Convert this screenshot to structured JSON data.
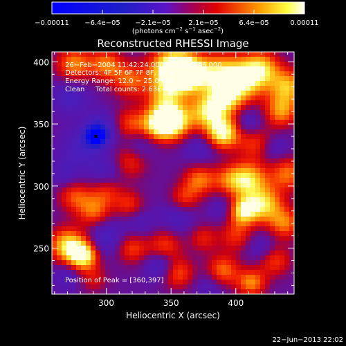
{
  "chart_data": {
    "type": "heatmap",
    "title": "Reconstructed RHESSI Image",
    "xlabel": "Heliocentric X (arcsec)",
    "ylabel": "Heliocentric Y (arcsec)",
    "xlim": [
      258,
      445
    ],
    "ylim": [
      213,
      408
    ],
    "x_ticks": [
      300,
      350,
      400
    ],
    "y_ticks": [
      250,
      300,
      350,
      400
    ],
    "colorbar": {
      "ticks": [
        "−0.00011",
        "−6.4e−05",
        "−2.1e−05",
        "2.1e−05",
        "6.4e−05",
        "0.00011"
      ],
      "range": [
        -0.00011,
        0.00011
      ],
      "unit_prefix": "(photons cm",
      "unit_sup1": "−2",
      "unit_mid1": " s",
      "unit_sup2": "−1",
      "unit_mid2": " asec",
      "unit_sup3": "−2",
      "unit_suffix": ")"
    },
    "annotations": {
      "time": "26−Feb−2004 11:42:24.000 to 11:46:46.000",
      "detectors": "Detectors: 4F 5F 6F 7F 8F, All 9",
      "energy": "Energy Range: 12.0 − 25.0 keV",
      "clean": "Clean     Total counts: 2.63E+03",
      "peak": "Position of Peak = [360,397]"
    },
    "peak": [
      360,
      397
    ],
    "footer_date": "22−Jun−2013 22:02",
    "blobs": [
      {
        "x": 350,
        "y": 395,
        "v": 0.95,
        "s": 12
      },
      {
        "x": 362,
        "y": 390,
        "v": 1.0,
        "s": 10
      },
      {
        "x": 275,
        "y": 398,
        "v": 0.6,
        "s": 10
      },
      {
        "x": 300,
        "y": 398,
        "v": 0.55,
        "s": 9
      },
      {
        "x": 318,
        "y": 385,
        "v": 0.5,
        "s": 10
      },
      {
        "x": 345,
        "y": 372,
        "v": 0.55,
        "s": 10
      },
      {
        "x": 385,
        "y": 390,
        "v": 0.7,
        "s": 12
      },
      {
        "x": 405,
        "y": 385,
        "v": 0.85,
        "s": 12
      },
      {
        "x": 420,
        "y": 395,
        "v": 0.65,
        "s": 10
      },
      {
        "x": 440,
        "y": 380,
        "v": 0.7,
        "s": 10
      },
      {
        "x": 435,
        "y": 360,
        "v": 0.6,
        "s": 9
      },
      {
        "x": 352,
        "y": 352,
        "v": 0.95,
        "s": 10
      },
      {
        "x": 340,
        "y": 350,
        "v": 0.8,
        "s": 9
      },
      {
        "x": 378,
        "y": 360,
        "v": 0.75,
        "s": 10
      },
      {
        "x": 390,
        "y": 343,
        "v": 0.95,
        "s": 9
      },
      {
        "x": 392,
        "y": 370,
        "v": 0.6,
        "s": 9
      },
      {
        "x": 415,
        "y": 335,
        "v": 0.45,
        "s": 10
      },
      {
        "x": 318,
        "y": 350,
        "v": 0.45,
        "s": 9
      },
      {
        "x": 318,
        "y": 320,
        "v": 0.45,
        "s": 10
      },
      {
        "x": 300,
        "y": 296,
        "v": 0.4,
        "s": 9
      },
      {
        "x": 275,
        "y": 292,
        "v": 0.45,
        "s": 9
      },
      {
        "x": 290,
        "y": 280,
        "v": 0.5,
        "s": 9
      },
      {
        "x": 318,
        "y": 285,
        "v": 0.4,
        "s": 8
      },
      {
        "x": 372,
        "y": 305,
        "v": 0.55,
        "s": 9
      },
      {
        "x": 360,
        "y": 290,
        "v": 0.4,
        "s": 8
      },
      {
        "x": 395,
        "y": 305,
        "v": 0.45,
        "s": 9
      },
      {
        "x": 410,
        "y": 305,
        "v": 0.75,
        "s": 10
      },
      {
        "x": 440,
        "y": 310,
        "v": 0.55,
        "s": 10
      },
      {
        "x": 422,
        "y": 285,
        "v": 0.75,
        "s": 10
      },
      {
        "x": 405,
        "y": 280,
        "v": 0.85,
        "s": 8
      },
      {
        "x": 438,
        "y": 270,
        "v": 0.55,
        "s": 9
      },
      {
        "x": 400,
        "y": 260,
        "v": 0.4,
        "s": 9
      },
      {
        "x": 375,
        "y": 258,
        "v": 0.35,
        "s": 8
      },
      {
        "x": 270,
        "y": 252,
        "v": 0.8,
        "s": 10
      },
      {
        "x": 282,
        "y": 244,
        "v": 0.9,
        "s": 8
      },
      {
        "x": 320,
        "y": 250,
        "v": 0.45,
        "s": 9
      },
      {
        "x": 345,
        "y": 252,
        "v": 0.45,
        "s": 9
      },
      {
        "x": 355,
        "y": 230,
        "v": 0.5,
        "s": 9
      },
      {
        "x": 390,
        "y": 232,
        "v": 0.55,
        "s": 9
      },
      {
        "x": 412,
        "y": 222,
        "v": 0.6,
        "s": 8
      },
      {
        "x": 430,
        "y": 240,
        "v": 0.45,
        "s": 9
      },
      {
        "x": 290,
        "y": 225,
        "v": 0.3,
        "s": 8
      },
      {
        "x": 292,
        "y": 340,
        "v": -1.0,
        "s": 5
      },
      {
        "x": 295,
        "y": 345,
        "v": -0.5,
        "s": 9
      },
      {
        "x": 272,
        "y": 372,
        "v": -0.35,
        "s": 9
      },
      {
        "x": 280,
        "y": 330,
        "v": -0.3,
        "s": 10
      },
      {
        "x": 300,
        "y": 312,
        "v": -0.3,
        "s": 10
      },
      {
        "x": 268,
        "y": 310,
        "v": -0.25,
        "s": 8
      },
      {
        "x": 325,
        "y": 332,
        "v": -0.25,
        "s": 9
      },
      {
        "x": 300,
        "y": 258,
        "v": -0.35,
        "s": 9
      },
      {
        "x": 342,
        "y": 236,
        "v": -0.4,
        "s": 8
      },
      {
        "x": 270,
        "y": 228,
        "v": -0.25,
        "s": 8
      },
      {
        "x": 372,
        "y": 330,
        "v": -0.25,
        "s": 9
      },
      {
        "x": 410,
        "y": 350,
        "v": -0.3,
        "s": 8
      },
      {
        "x": 430,
        "y": 330,
        "v": -0.25,
        "s": 8
      },
      {
        "x": 355,
        "y": 275,
        "v": -0.25,
        "s": 9
      },
      {
        "x": 392,
        "y": 282,
        "v": -0.25,
        "s": 8
      },
      {
        "x": 420,
        "y": 250,
        "v": -0.25,
        "s": 8
      },
      {
        "x": 380,
        "y": 220,
        "v": -0.2,
        "s": 8
      },
      {
        "x": 325,
        "y": 270,
        "v": -0.2,
        "s": 9
      }
    ],
    "base_level": 0.05
  }
}
